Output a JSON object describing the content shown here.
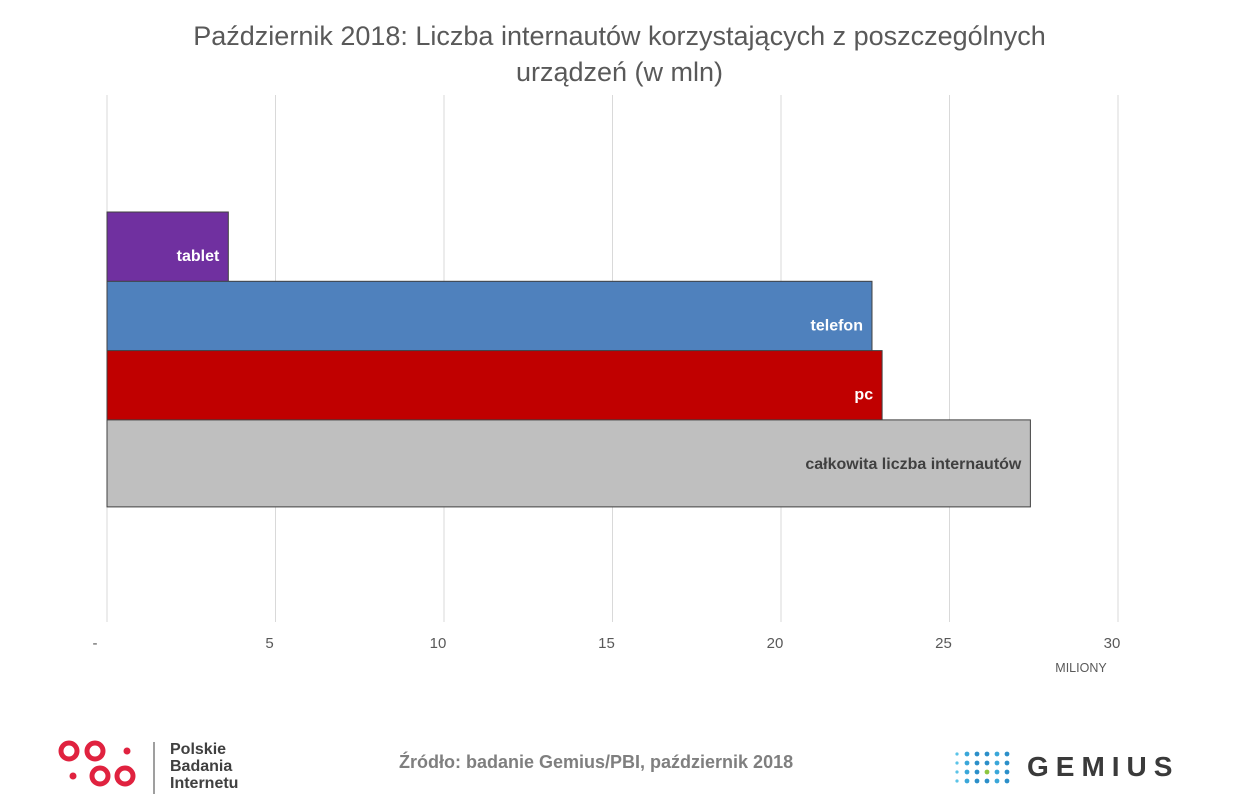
{
  "title_line1": "Październik 2018: Liczba internautów korzystających z poszczególnych",
  "title_line2": "urządzeń (w mln)",
  "source": "Źródło: badanie Gemius/PBI, październik 2018",
  "pbi_logo": {
    "line1": "Polskie",
    "line2": "Badania",
    "line3": "Internetu"
  },
  "gemius_logo": {
    "name": "GEMIUS"
  },
  "chart_data": {
    "type": "bar",
    "orientation": "horizontal",
    "categories": [
      "tablet",
      "telefon",
      "pc",
      "całkowita liczba internautów"
    ],
    "values": [
      3.6,
      22.7,
      23.0,
      27.4
    ],
    "colors": [
      "#7030a0",
      "#4f81bd",
      "#c00000",
      "#bfbfbf"
    ],
    "label_colors": [
      "#ffffff",
      "#ffffff",
      "#ffffff",
      "#404040"
    ],
    "xlabel": "MILIONY",
    "ylabel": "",
    "xlim": [
      0,
      30
    ],
    "xticks": [
      0,
      5,
      10,
      15,
      20,
      25,
      30
    ],
    "xtick_labels": [
      "-",
      "5",
      "10",
      "15",
      "20",
      "25",
      "30"
    ],
    "grid": true,
    "legend": "none",
    "bars_overlap": true
  }
}
